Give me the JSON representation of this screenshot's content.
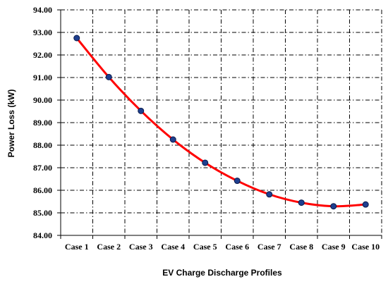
{
  "chart_data": {
    "type": "line",
    "title": "",
    "xlabel": "EV Charge Discharge Profiles",
    "ylabel": "Power Loss (kW)",
    "categories": [
      "Case 1",
      "Case 2",
      "Case 3",
      "Case 4",
      "Case 5",
      "Case 6",
      "Case 7",
      "Case 8",
      "Case 9",
      "Case 10"
    ],
    "values": [
      92.75,
      91.02,
      89.52,
      88.25,
      87.22,
      86.42,
      85.82,
      85.45,
      85.29,
      85.37
    ],
    "ylim": [
      84.0,
      94.0
    ],
    "yticks": [
      "84.00",
      "85.00",
      "86.00",
      "87.00",
      "88.00",
      "89.00",
      "90.00",
      "91.00",
      "92.00",
      "93.00",
      "94.00"
    ],
    "grid": "dash-dot",
    "line_color": "#ff0000",
    "marker_color": "#1f3f8f"
  }
}
